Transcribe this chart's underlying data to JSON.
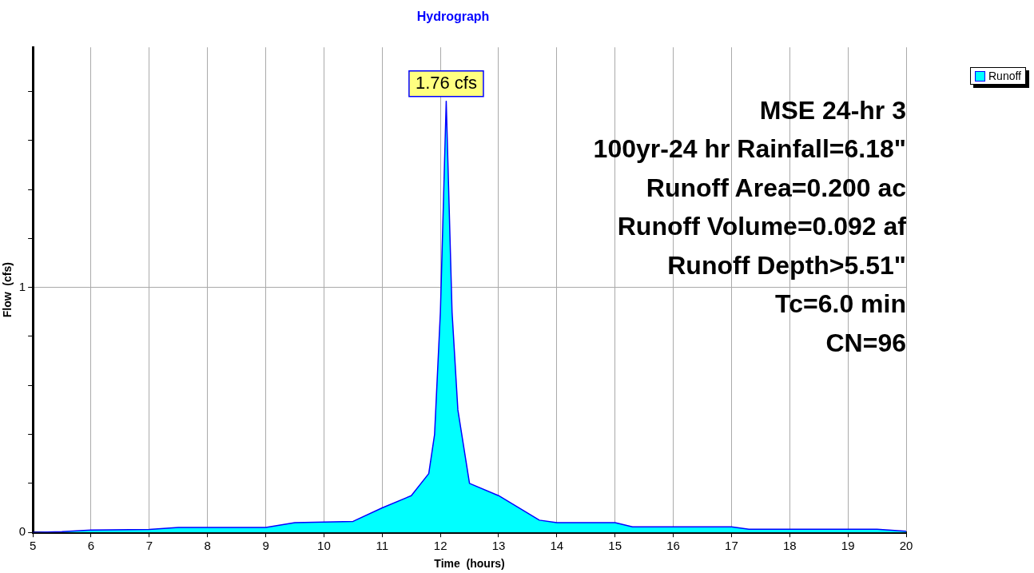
{
  "chart_data": {
    "type": "area",
    "title": "Hydrograph",
    "xlabel": "Time  (hours)",
    "ylabel": "Flow  (cfs)",
    "x": [
      5,
      5.5,
      6,
      7,
      7.5,
      9,
      9.5,
      10.5,
      11,
      11.5,
      11.8,
      11.9,
      12,
      12.1,
      12.2,
      12.3,
      12.5,
      13,
      13.7,
      14,
      15,
      15.3,
      17,
      17.3,
      19.5,
      20
    ],
    "series": [
      {
        "name": "Runoff",
        "color": "#00ffff",
        "values": [
          0,
          0.003,
          0.01,
          0.012,
          0.02,
          0.02,
          0.04,
          0.045,
          0.1,
          0.15,
          0.24,
          0.4,
          0.9,
          1.76,
          0.9,
          0.5,
          0.2,
          0.15,
          0.05,
          0.04,
          0.04,
          0.023,
          0.023,
          0.013,
          0.013,
          0.005
        ]
      }
    ],
    "xlim": [
      5,
      20
    ],
    "xticks": [
      5,
      6,
      7,
      8,
      9,
      10,
      11,
      12,
      13,
      14,
      15,
      16,
      17,
      18,
      19,
      20
    ],
    "ylim": [
      0,
      1.98
    ],
    "yticks": [
      0,
      {
        "value": 0.2,
        "label": null
      },
      {
        "value": 0.4,
        "label": null
      },
      {
        "value": 0.6,
        "label": null
      },
      {
        "value": 0.8,
        "label": null
      },
      1,
      {
        "value": 1.2,
        "label": null
      },
      {
        "value": 1.4,
        "label": null
      },
      {
        "value": 1.6,
        "label": null
      },
      {
        "value": 1.8,
        "label": null
      }
    ],
    "grid": true,
    "legend": "top right",
    "marker": "none",
    "annotations": [
      {
        "text": "1.76 cfs",
        "x": 12.1,
        "y": 1.76
      },
      "MSE 24-hr 3",
      "100yr-24 hr Rainfall=6.18\"",
      "Runoff Area=0.200 ac",
      "Runoff Volume=0.092 af",
      "Runoff Depth>5.51\"",
      "Tc=6.0 min",
      "CN=96"
    ]
  }
}
